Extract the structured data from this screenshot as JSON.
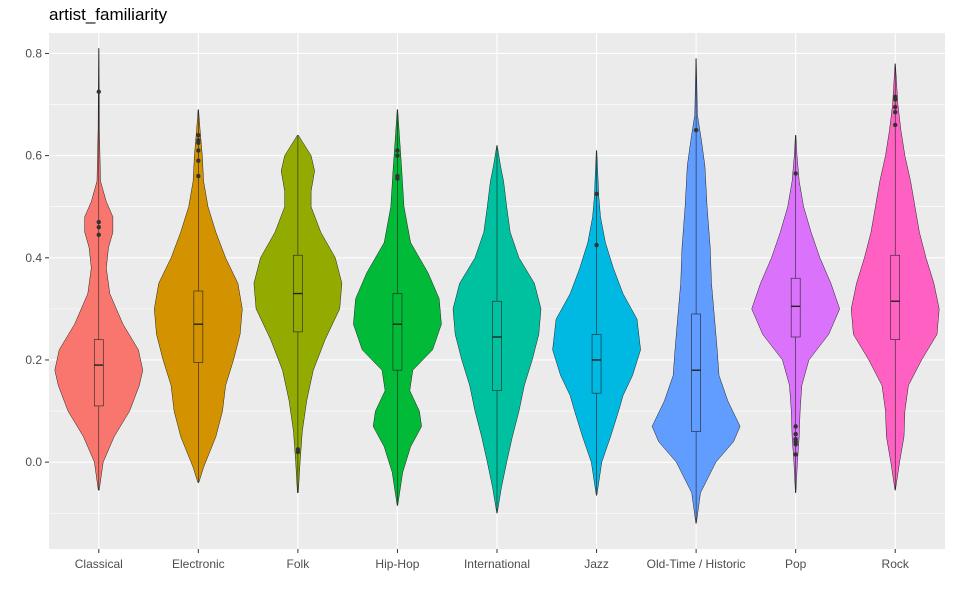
{
  "chart_data": {
    "type": "violin",
    "title": "artist_familiarity",
    "xlabel": "",
    "ylabel": "",
    "ylim": [
      -0.17,
      0.84
    ],
    "yticks": [
      0.0,
      0.2,
      0.4,
      0.6,
      0.8
    ],
    "ytick_labels": [
      "0.0",
      "0.2",
      "0.4",
      "0.6",
      "0.8"
    ],
    "grid": true,
    "legend": "none",
    "categories": [
      "Classical",
      "Electronic",
      "Folk",
      "Hip-Hop",
      "International",
      "Jazz",
      "Old-Time / Historic",
      "Pop",
      "Rock"
    ],
    "series": [
      {
        "category": "Classical",
        "color": "#F8766D",
        "whisker_low": 0.03,
        "q1": 0.11,
        "median": 0.19,
        "q3": 0.24,
        "whisker_high": 0.42,
        "min": -0.055,
        "max": 0.81,
        "outliers": [
          0.445,
          0.46,
          0.47,
          0.725
        ],
        "density": [
          [
            -0.055,
            0.01
          ],
          [
            0.0,
            0.1
          ],
          [
            0.05,
            0.35
          ],
          [
            0.1,
            0.7
          ],
          [
            0.15,
            0.92
          ],
          [
            0.18,
            1.0
          ],
          [
            0.22,
            0.9
          ],
          [
            0.27,
            0.55
          ],
          [
            0.33,
            0.25
          ],
          [
            0.38,
            0.17
          ],
          [
            0.42,
            0.22
          ],
          [
            0.45,
            0.32
          ],
          [
            0.48,
            0.32
          ],
          [
            0.51,
            0.17
          ],
          [
            0.55,
            0.04
          ],
          [
            0.65,
            0.015
          ],
          [
            0.81,
            0.005
          ]
        ]
      },
      {
        "category": "Electronic",
        "color": "#D39200",
        "whisker_low": -0.01,
        "q1": 0.195,
        "median": 0.27,
        "q3": 0.335,
        "whisker_high": 0.54,
        "min": -0.04,
        "max": 0.69,
        "outliers": [
          0.56,
          0.59,
          0.61,
          0.625,
          0.63,
          0.64
        ],
        "density": [
          [
            -0.04,
            0.01
          ],
          [
            -0.01,
            0.12
          ],
          [
            0.05,
            0.4
          ],
          [
            0.1,
            0.55
          ],
          [
            0.15,
            0.62
          ],
          [
            0.2,
            0.8
          ],
          [
            0.25,
            0.95
          ],
          [
            0.3,
            1.0
          ],
          [
            0.35,
            0.9
          ],
          [
            0.4,
            0.62
          ],
          [
            0.45,
            0.4
          ],
          [
            0.5,
            0.22
          ],
          [
            0.55,
            0.12
          ],
          [
            0.6,
            0.09
          ],
          [
            0.65,
            0.04
          ],
          [
            0.69,
            0.005
          ]
        ]
      },
      {
        "category": "Folk",
        "color": "#93AA00",
        "whisker_low": 0.02,
        "q1": 0.255,
        "median": 0.33,
        "q3": 0.405,
        "whisker_high": 0.58,
        "min": -0.06,
        "max": 0.64,
        "outliers": [
          0.02,
          0.025
        ],
        "density": [
          [
            -0.06,
            0.01
          ],
          [
            0.0,
            0.05
          ],
          [
            0.06,
            0.1
          ],
          [
            0.12,
            0.2
          ],
          [
            0.18,
            0.35
          ],
          [
            0.24,
            0.62
          ],
          [
            0.3,
            0.95
          ],
          [
            0.35,
            1.0
          ],
          [
            0.4,
            0.85
          ],
          [
            0.45,
            0.52
          ],
          [
            0.5,
            0.3
          ],
          [
            0.53,
            0.3
          ],
          [
            0.57,
            0.38
          ],
          [
            0.6,
            0.3
          ],
          [
            0.64,
            0.01
          ]
        ]
      },
      {
        "category": "Hip-Hop",
        "color": "#00BA38",
        "whisker_low": -0.02,
        "q1": 0.18,
        "median": 0.27,
        "q3": 0.33,
        "whisker_high": 0.54,
        "min": -0.085,
        "max": 0.69,
        "outliers": [
          0.555,
          0.56,
          0.6,
          0.61
        ],
        "density": [
          [
            -0.085,
            0.005
          ],
          [
            -0.02,
            0.12
          ],
          [
            0.03,
            0.3
          ],
          [
            0.07,
            0.55
          ],
          [
            0.1,
            0.5
          ],
          [
            0.14,
            0.28
          ],
          [
            0.18,
            0.35
          ],
          [
            0.22,
            0.8
          ],
          [
            0.27,
            1.0
          ],
          [
            0.32,
            0.95
          ],
          [
            0.37,
            0.7
          ],
          [
            0.43,
            0.3
          ],
          [
            0.5,
            0.15
          ],
          [
            0.57,
            0.1
          ],
          [
            0.62,
            0.06
          ],
          [
            0.69,
            0.005
          ]
        ]
      },
      {
        "category": "International",
        "color": "#00C19F",
        "whisker_low": 0.03,
        "q1": 0.14,
        "median": 0.245,
        "q3": 0.315,
        "whisker_high": 0.58,
        "min": -0.1,
        "max": 0.62,
        "outliers": [],
        "density": [
          [
            -0.1,
            0.005
          ],
          [
            -0.05,
            0.1
          ],
          [
            0.0,
            0.22
          ],
          [
            0.05,
            0.35
          ],
          [
            0.1,
            0.5
          ],
          [
            0.15,
            0.62
          ],
          [
            0.2,
            0.8
          ],
          [
            0.25,
            0.95
          ],
          [
            0.3,
            1.0
          ],
          [
            0.35,
            0.85
          ],
          [
            0.4,
            0.5
          ],
          [
            0.45,
            0.3
          ],
          [
            0.5,
            0.22
          ],
          [
            0.55,
            0.15
          ],
          [
            0.58,
            0.08
          ],
          [
            0.62,
            0.005
          ]
        ]
      },
      {
        "category": "Jazz",
        "color": "#00B9E3",
        "whisker_low": 0.02,
        "q1": 0.135,
        "median": 0.2,
        "q3": 0.25,
        "whisker_high": 0.45,
        "min": -0.065,
        "max": 0.61,
        "outliers": [
          0.425,
          0.525
        ],
        "density": [
          [
            -0.065,
            0.005
          ],
          [
            0.0,
            0.12
          ],
          [
            0.05,
            0.32
          ],
          [
            0.1,
            0.5
          ],
          [
            0.13,
            0.6
          ],
          [
            0.17,
            0.82
          ],
          [
            0.22,
            1.0
          ],
          [
            0.28,
            0.92
          ],
          [
            0.33,
            0.6
          ],
          [
            0.38,
            0.38
          ],
          [
            0.43,
            0.2
          ],
          [
            0.48,
            0.09
          ],
          [
            0.52,
            0.05
          ],
          [
            0.56,
            0.03
          ],
          [
            0.61,
            0.005
          ]
        ]
      },
      {
        "category": "Old-Time / Historic",
        "color": "#619CFF",
        "whisker_low": 0.02,
        "q1": 0.06,
        "median": 0.18,
        "q3": 0.29,
        "whisker_high": 0.63,
        "min": -0.12,
        "max": 0.79,
        "outliers": [
          0.65
        ],
        "density": [
          [
            -0.12,
            0.005
          ],
          [
            -0.06,
            0.1
          ],
          [
            0.0,
            0.45
          ],
          [
            0.04,
            0.85
          ],
          [
            0.07,
            1.0
          ],
          [
            0.12,
            0.72
          ],
          [
            0.17,
            0.52
          ],
          [
            0.22,
            0.48
          ],
          [
            0.28,
            0.42
          ],
          [
            0.35,
            0.35
          ],
          [
            0.42,
            0.32
          ],
          [
            0.5,
            0.25
          ],
          [
            0.58,
            0.2
          ],
          [
            0.63,
            0.12
          ],
          [
            0.68,
            0.03
          ],
          [
            0.79,
            0.005
          ]
        ]
      },
      {
        "category": "Pop",
        "color": "#DB72FB",
        "whisker_low": 0.01,
        "q1": 0.245,
        "median": 0.305,
        "q3": 0.36,
        "whisker_high": 0.55,
        "min": -0.06,
        "max": 0.64,
        "outliers": [
          0.015,
          0.035,
          0.04,
          0.045,
          0.055,
          0.07,
          0.565
        ],
        "density": [
          [
            -0.06,
            0.005
          ],
          [
            0.0,
            0.04
          ],
          [
            0.05,
            0.08
          ],
          [
            0.1,
            0.1
          ],
          [
            0.15,
            0.14
          ],
          [
            0.2,
            0.3
          ],
          [
            0.25,
            0.75
          ],
          [
            0.3,
            1.0
          ],
          [
            0.35,
            0.8
          ],
          [
            0.4,
            0.55
          ],
          [
            0.45,
            0.35
          ],
          [
            0.5,
            0.18
          ],
          [
            0.55,
            0.08
          ],
          [
            0.6,
            0.03
          ],
          [
            0.64,
            0.005
          ]
        ]
      },
      {
        "category": "Rock",
        "color": "#FF61C3",
        "whisker_low": 0.02,
        "q1": 0.24,
        "median": 0.315,
        "q3": 0.405,
        "whisker_high": 0.64,
        "min": -0.055,
        "max": 0.78,
        "outliers": [
          0.66,
          0.685,
          0.695,
          0.71,
          0.715
        ],
        "density": [
          [
            -0.055,
            0.005
          ],
          [
            0.0,
            0.1
          ],
          [
            0.05,
            0.2
          ],
          [
            0.1,
            0.22
          ],
          [
            0.15,
            0.3
          ],
          [
            0.2,
            0.6
          ],
          [
            0.25,
            0.95
          ],
          [
            0.3,
            1.0
          ],
          [
            0.35,
            0.88
          ],
          [
            0.4,
            0.7
          ],
          [
            0.45,
            0.55
          ],
          [
            0.5,
            0.45
          ],
          [
            0.55,
            0.35
          ],
          [
            0.6,
            0.22
          ],
          [
            0.65,
            0.13
          ],
          [
            0.7,
            0.06
          ],
          [
            0.78,
            0.005
          ]
        ]
      }
    ]
  }
}
